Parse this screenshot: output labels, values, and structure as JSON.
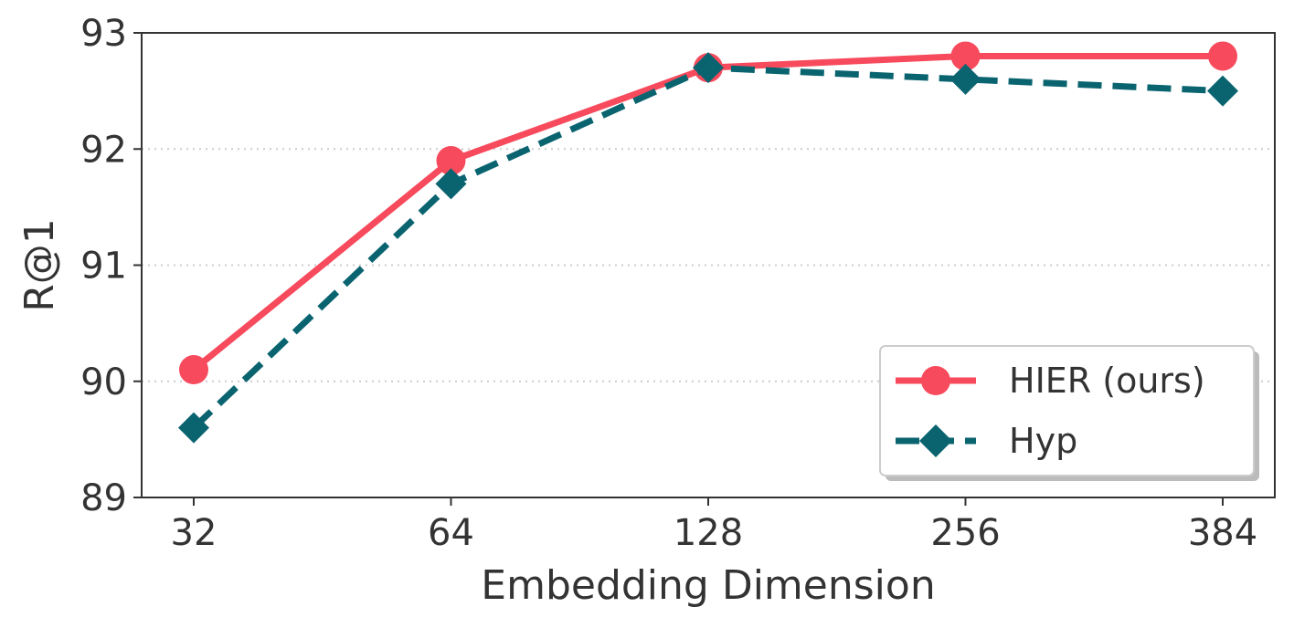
{
  "chart_data": {
    "type": "line",
    "xlabel": "Embedding Dimension",
    "ylabel": "R@1",
    "categories": [
      "32",
      "64",
      "128",
      "256",
      "384"
    ],
    "ylim": [
      89,
      93
    ],
    "yticks": [
      "89",
      "90",
      "91",
      "92",
      "93"
    ],
    "grid": "horizontal dotted",
    "legend_position": "bottom-right",
    "series": [
      {
        "name": "HIER (ours)",
        "values": [
          90.1,
          91.9,
          92.7,
          92.8,
          92.8
        ],
        "color": "#F74A5C",
        "marker": "circle",
        "line_style": "solid"
      },
      {
        "name": "Hyp",
        "values": [
          89.6,
          91.7,
          92.7,
          92.6,
          92.5
        ],
        "color": "#0A6470",
        "marker": "diamond",
        "line_style": "dashed"
      }
    ]
  }
}
